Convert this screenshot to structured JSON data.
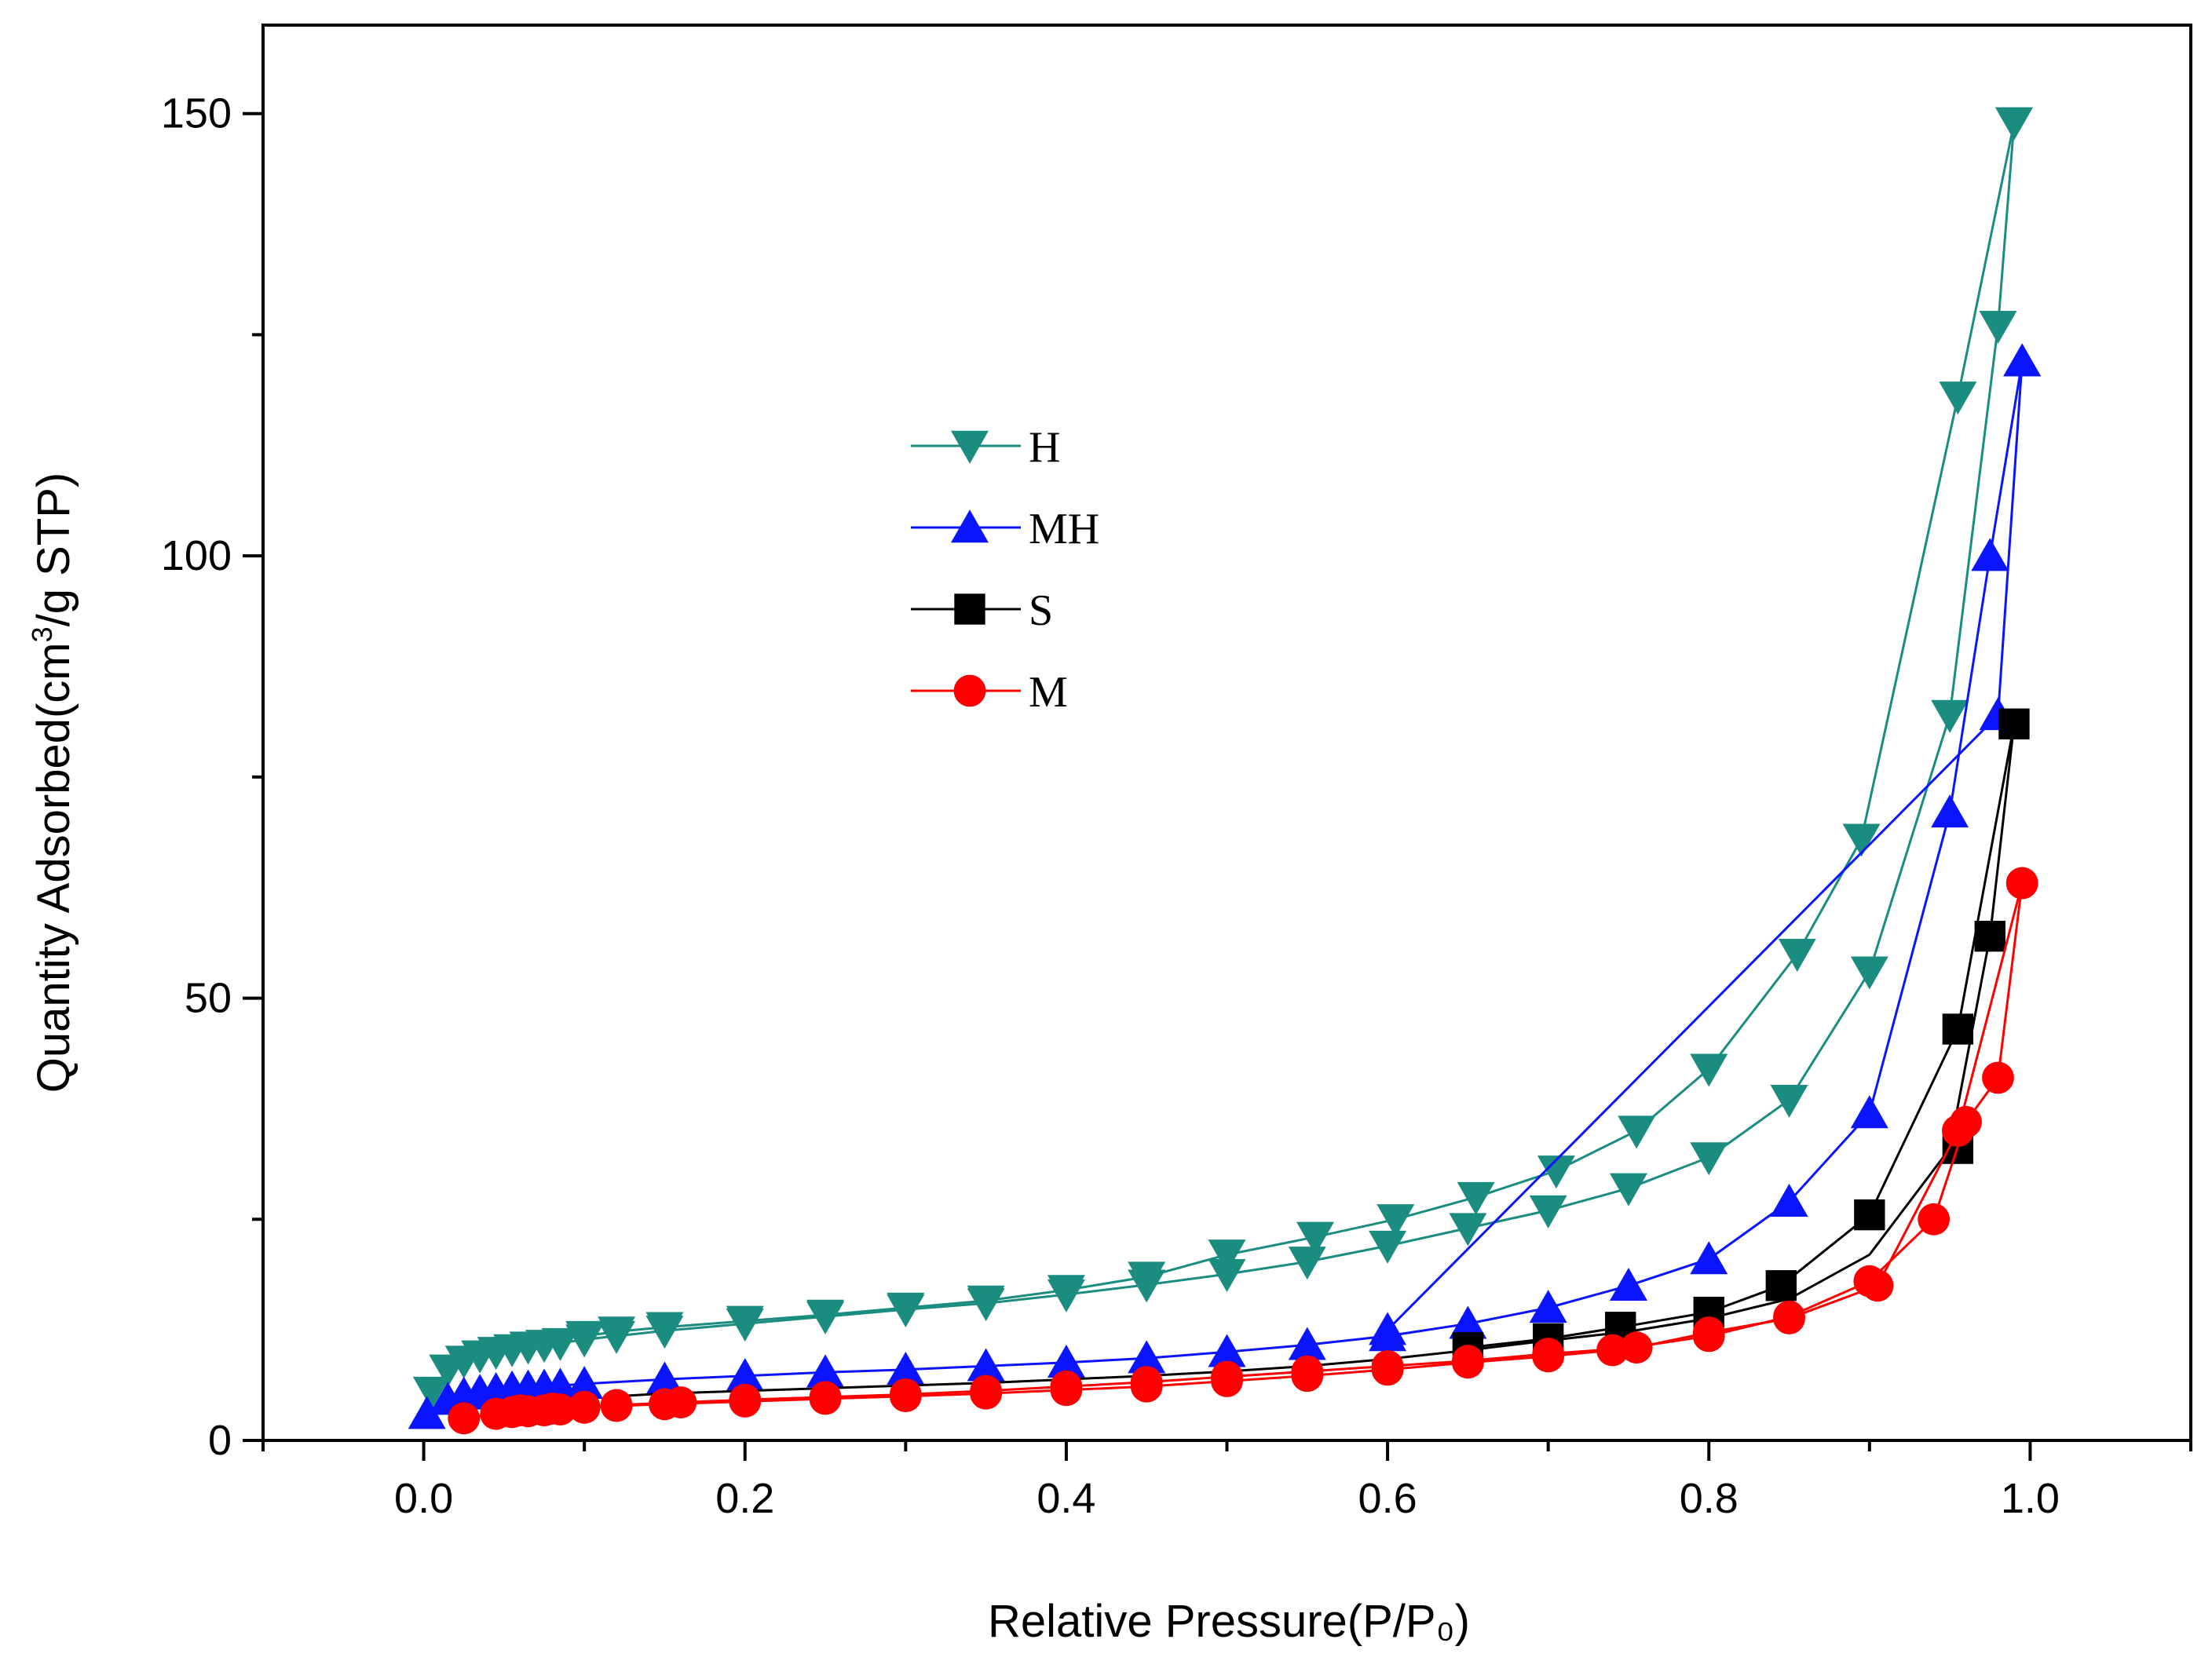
{
  "chart_data": {
    "type": "line",
    "title": "",
    "xlabel": "Relative Pressure(P/P₀)",
    "ylabel_prefix": "Quantity Adsorbed(cm",
    "ylabel_sup": "3",
    "ylabel_suffix": "/g STP)",
    "xlim": [
      -0.1,
      1.1
    ],
    "ylim": [
      0,
      160
    ],
    "x_ticks": [
      0.0,
      0.2,
      0.4,
      0.6,
      0.8,
      1.0
    ],
    "x_tick_labels": [
      "0.0",
      "0.2",
      "0.4",
      "0.6",
      "0.8",
      "1.0"
    ],
    "x_minor_ticks": [
      -0.1,
      0.1,
      0.3,
      0.5,
      0.7,
      0.9,
      1.1
    ],
    "y_ticks": [
      0,
      50,
      100,
      150
    ],
    "y_tick_labels": [
      "0",
      "50",
      "100",
      "150"
    ],
    "y_minor_ticks": [
      25,
      75,
      125
    ],
    "grid": false,
    "legend_position": "upper-middle-left",
    "series": [
      {
        "name": "H",
        "color": "#1a8c80",
        "marker": "triangle-down",
        "adsorption": {
          "x": [
            0.005,
            0.015,
            0.025,
            0.035,
            0.045,
            0.055,
            0.065,
            0.075,
            0.085,
            0.1,
            0.12,
            0.15,
            0.2,
            0.25,
            0.3,
            0.35,
            0.4,
            0.45,
            0.5,
            0.55,
            0.6,
            0.65,
            0.7,
            0.75,
            0.8,
            0.85,
            0.9,
            0.95,
            0.98,
            0.99
          ],
          "y": [
            5.5,
            8.0,
            9.0,
            9.6,
            10.0,
            10.3,
            10.6,
            10.8,
            11.0,
            11.4,
            11.8,
            12.4,
            13.2,
            14.0,
            14.8,
            15.5,
            16.5,
            17.6,
            18.8,
            20.2,
            22.0,
            24.0,
            26.0,
            28.5,
            32.0,
            38.5,
            53.0,
            82.0,
            126.0,
            149.0
          ]
        },
        "desorption": {
          "x": [
            0.99,
            0.955,
            0.895,
            0.855,
            0.8,
            0.755,
            0.705,
            0.655,
            0.605,
            0.555,
            0.5,
            0.45,
            0.4,
            0.35,
            0.3,
            0.25,
            0.2,
            0.15,
            0.12,
            0.1
          ],
          "y": [
            149.0,
            118.0,
            68.0,
            55.0,
            42.0,
            35.0,
            30.5,
            27.5,
            25.0,
            23.0,
            21.0,
            18.5,
            17.0,
            15.8,
            15.0,
            14.2,
            13.5,
            12.8,
            12.3,
            11.8
          ]
        }
      },
      {
        "name": "MH",
        "color": "#0a14ff",
        "marker": "triangle-up",
        "adsorption": {
          "x": [
            0.002,
            0.015,
            0.025,
            0.035,
            0.045,
            0.055,
            0.065,
            0.075,
            0.085,
            0.1,
            0.15,
            0.2,
            0.25,
            0.3,
            0.35,
            0.4,
            0.45,
            0.5,
            0.55,
            0.6,
            0.65,
            0.7,
            0.75,
            0.8,
            0.85,
            0.9,
            0.95,
            0.975,
            0.995
          ],
          "y": [
            3.0,
            4.6,
            5.2,
            5.5,
            5.7,
            5.9,
            6.0,
            6.1,
            6.2,
            6.4,
            6.9,
            7.3,
            7.7,
            8.0,
            8.4,
            8.8,
            9.3,
            10.0,
            10.8,
            11.8,
            13.2,
            15.0,
            17.5,
            20.5,
            27.0,
            37.0,
            71.0,
            100.0,
            122.0
          ]
        },
        "desorption": {
          "x": [
            0.995,
            0.98,
            0.6
          ],
          "y": [
            122.0,
            82.0,
            12.5
          ]
        }
      },
      {
        "name": "S",
        "color": "#000000",
        "marker": "square",
        "adsorption": {
          "x": [
            0.12,
            0.15,
            0.2,
            0.25,
            0.3,
            0.35,
            0.4,
            0.45,
            0.5,
            0.55,
            0.6,
            0.65,
            0.7,
            0.75,
            0.8,
            0.85,
            0.9,
            0.95,
            0.975,
            0.99
          ],
          "y": [
            5.0,
            5.3,
            5.6,
            5.9,
            6.2,
            6.5,
            6.9,
            7.3,
            7.8,
            8.4,
            9.2,
            10.2,
            11.3,
            12.3,
            13.8,
            16.0,
            21.0,
            33.0,
            57.0,
            81.0
          ],
          "marker_x": [
            0.955,
            0.975,
            0.99
          ],
          "marker_y": [
            33.0,
            57.0,
            81.0
          ]
        },
        "desorption": {
          "x": [
            0.99,
            0.955,
            0.9,
            0.845,
            0.8,
            0.745,
            0.7,
            0.65
          ],
          "y": [
            81.0,
            46.5,
            25.5,
            17.5,
            14.5,
            12.8,
            11.5,
            10.5
          ],
          "marker_x": [
            0.955,
            0.9,
            0.845,
            0.8,
            0.745,
            0.7,
            0.65
          ],
          "marker_y": [
            46.5,
            25.5,
            17.5,
            14.5,
            12.8,
            11.5,
            10.5
          ]
        }
      },
      {
        "name": "M",
        "color": "#ff0000",
        "marker": "circle",
        "adsorption": {
          "x": [
            0.025,
            0.045,
            0.055,
            0.065,
            0.075,
            0.085,
            0.1,
            0.12,
            0.15,
            0.2,
            0.25,
            0.3,
            0.35,
            0.4,
            0.45,
            0.5,
            0.55,
            0.6,
            0.65,
            0.7,
            0.74,
            0.8,
            0.85,
            0.9,
            0.94,
            0.96,
            0.98,
            0.995
          ],
          "y": [
            2.5,
            3.0,
            3.2,
            3.3,
            3.4,
            3.5,
            3.7,
            3.9,
            4.1,
            4.4,
            4.7,
            5.0,
            5.3,
            5.7,
            6.1,
            6.7,
            7.3,
            8.0,
            8.8,
            9.5,
            10.2,
            11.8,
            14.0,
            18.0,
            25.0,
            36.0,
            41.0,
            63.0
          ]
        },
        "desorption": {
          "x": [
            0.995,
            0.955,
            0.905,
            0.85,
            0.8,
            0.755,
            0.7,
            0.65,
            0.6,
            0.55,
            0.5,
            0.45,
            0.4,
            0.35,
            0.3,
            0.25,
            0.2,
            0.16,
            0.12,
            0.1,
            0.08,
            0.06
          ],
          "y": [
            63.0,
            35.0,
            17.5,
            13.8,
            12.2,
            10.5,
            9.8,
            9.0,
            8.4,
            7.8,
            7.2,
            6.6,
            6.1,
            5.6,
            5.2,
            4.9,
            4.6,
            4.3,
            4.0,
            3.8,
            3.6,
            3.4
          ]
        }
      }
    ],
    "legend": [
      {
        "name": "H",
        "label": "H"
      },
      {
        "name": "MH",
        "label": "MH"
      },
      {
        "name": "S",
        "label": "S"
      },
      {
        "name": "M",
        "label": "M"
      }
    ]
  }
}
